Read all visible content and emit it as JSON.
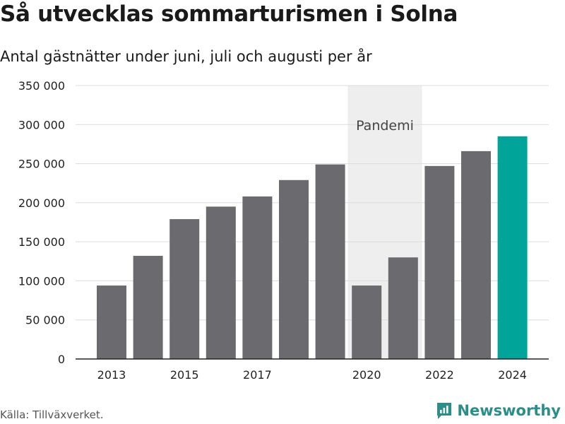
{
  "header": {
    "title": "Så utvecklas sommarturismen i Solna",
    "subtitle": "Antal gästnätter under juni, juli och augusti per år"
  },
  "footer": {
    "source": "Källa: Tillväxverket.",
    "brand": "Newsworthy",
    "brand_color": "#2a8f8a"
  },
  "chart_data": {
    "type": "bar",
    "categories": [
      "2013",
      "2014",
      "2015",
      "2016",
      "2017",
      "2018",
      "2019",
      "2020",
      "2021",
      "2022",
      "2023",
      "2024"
    ],
    "values": [
      94000,
      132000,
      179000,
      195000,
      208000,
      229000,
      249000,
      94000,
      130000,
      247000,
      266000,
      285000
    ],
    "highlight_category": "2024",
    "colors": {
      "default": "#6b6a6f",
      "highlight": "#00a499",
      "band": "#eeeeee",
      "grid": "#dcdcdc"
    },
    "ylim": [
      0,
      350000
    ],
    "yticks": [
      0,
      50000,
      100000,
      150000,
      200000,
      250000,
      300000,
      350000
    ],
    "ytick_labels": [
      "0",
      "50 000",
      "100 000",
      "150 000",
      "200 000",
      "250 000",
      "300 000",
      "350 000"
    ],
    "xtick_labels": [
      "2013",
      "2015",
      "2017",
      "2020",
      "2022",
      "2024"
    ],
    "annotation": {
      "label": "Pandemi",
      "categories": [
        "2020",
        "2021"
      ]
    },
    "grid": true,
    "legend": false
  }
}
